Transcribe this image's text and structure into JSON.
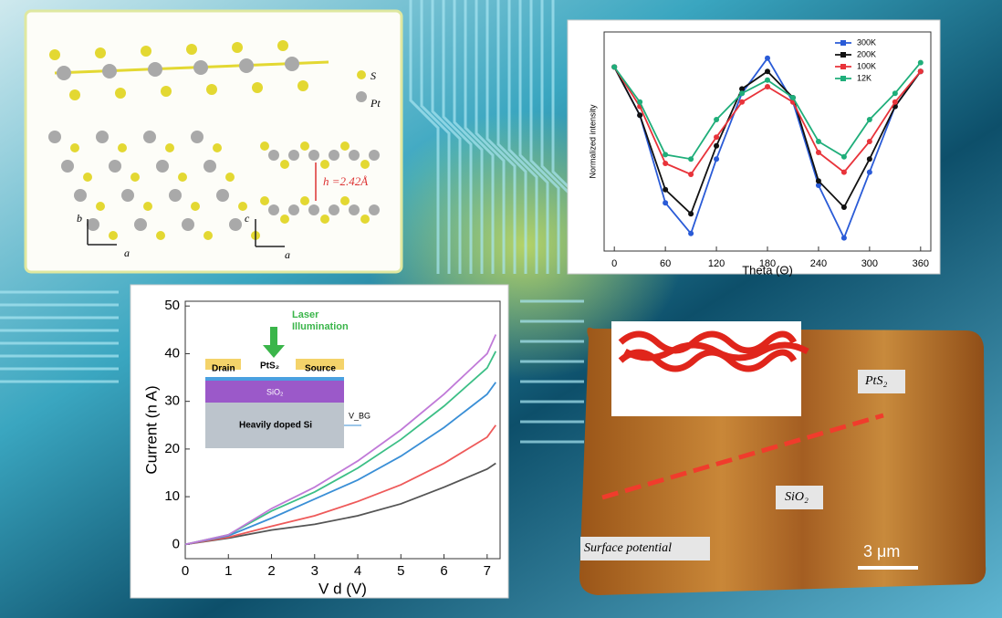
{
  "chart_data": [
    {
      "type": "line",
      "xlabel": "Theta (Θ)",
      "ylabel": "Normalized intensity",
      "x": [
        0,
        30,
        60,
        90,
        120,
        150,
        180,
        210,
        240,
        270,
        300,
        330,
        360
      ],
      "xlim": [
        -12,
        372
      ],
      "xticks": [
        0,
        60,
        120,
        180,
        240,
        300,
        360
      ],
      "ylim": [
        0,
        1
      ],
      "markers": true,
      "legend": "upper right",
      "series": [
        {
          "name": "300K",
          "color": "#2a5bd7",
          "values": [
            0.84,
            0.62,
            0.22,
            0.08,
            0.42,
            0.72,
            0.88,
            0.68,
            0.3,
            0.06,
            0.36,
            0.66,
            0.82
          ]
        },
        {
          "name": "200K",
          "color": "#111111",
          "values": [
            0.84,
            0.62,
            0.28,
            0.17,
            0.48,
            0.74,
            0.82,
            0.7,
            0.32,
            0.2,
            0.42,
            0.66,
            0.82
          ]
        },
        {
          "name": "100K",
          "color": "#e8333a",
          "values": [
            0.84,
            0.66,
            0.4,
            0.35,
            0.52,
            0.68,
            0.75,
            0.68,
            0.45,
            0.36,
            0.5,
            0.68,
            0.82
          ]
        },
        {
          "name": "12K",
          "color": "#1fae7a",
          "values": [
            0.84,
            0.68,
            0.44,
            0.42,
            0.6,
            0.72,
            0.78,
            0.7,
            0.5,
            0.43,
            0.6,
            0.72,
            0.86
          ]
        }
      ]
    },
    {
      "type": "line",
      "xlabel": "V d (V)",
      "ylabel": "Current (n A)",
      "x": [
        0,
        1,
        2,
        3,
        4,
        5,
        6,
        7,
        7.2
      ],
      "xlim": [
        0,
        7.3
      ],
      "xticks": [
        0,
        1,
        2,
        3,
        4,
        5,
        6,
        7
      ],
      "ylim": [
        -3,
        51
      ],
      "yticks": [
        0,
        10,
        20,
        30,
        40,
        50
      ],
      "markers": false,
      "series": [
        {
          "color": "#555555",
          "values": [
            0,
            1.3,
            3,
            4.2,
            6,
            8.5,
            12,
            15.8,
            17
          ]
        },
        {
          "color": "#ee5a5a",
          "values": [
            0,
            1.5,
            3.8,
            6,
            9,
            12.5,
            17,
            22.5,
            25
          ]
        },
        {
          "color": "#3a8fd6",
          "values": [
            0,
            1.8,
            5.5,
            9.5,
            13.5,
            18.5,
            24.5,
            31.5,
            34
          ]
        },
        {
          "color": "#3cbf86",
          "values": [
            0,
            2,
            7,
            11,
            16,
            22,
            29,
            37,
            40.5
          ]
        },
        {
          "color": "#c07ad8",
          "values": [
            0,
            2,
            7.5,
            12,
            17.5,
            24,
            31.5,
            40,
            44
          ]
        }
      ]
    }
  ],
  "structure": {
    "legend": [
      "S",
      "Pt"
    ],
    "axes_top": [
      "b",
      "a"
    ],
    "axes_side": [
      "c",
      "a"
    ],
    "interlayer": "h =2.42Å"
  },
  "device_inset": {
    "light": [
      "Laser",
      "Illumination"
    ],
    "drain": "Drain",
    "channel": "PtS₂",
    "source": "Source",
    "oxide": "SiO₂",
    "substrate": "Heavily doped Si",
    "gate": "V_BG"
  },
  "afm": {
    "top_label": "PtS₂",
    "bottom_label": "SiO₂",
    "caption": "Surface potential",
    "scale": "3 μm"
  }
}
